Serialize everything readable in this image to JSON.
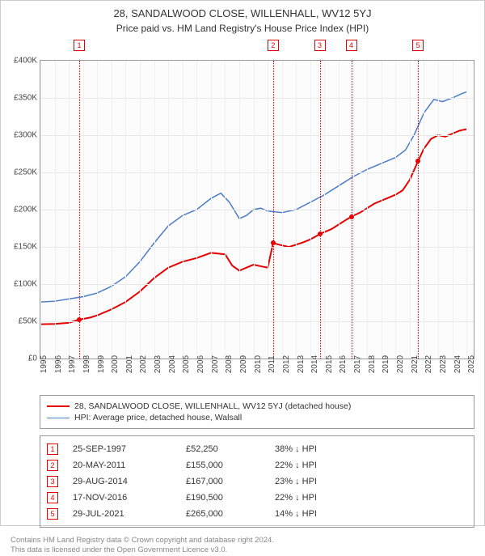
{
  "title_main": "28, SANDALWOOD CLOSE, WILLENHALL, WV12 5YJ",
  "title_sub": "Price paid vs. HM Land Registry's House Price Index (HPI)",
  "chart": {
    "type": "line",
    "x_min": 1995,
    "x_max": 2025.5,
    "y_min": 0,
    "y_max": 400000,
    "y_ticks": [
      0,
      50000,
      100000,
      150000,
      200000,
      250000,
      300000,
      350000,
      400000
    ],
    "y_tick_labels": [
      "£0",
      "£50K",
      "£100K",
      "£150K",
      "£200K",
      "£250K",
      "£300K",
      "£350K",
      "£400K"
    ],
    "x_ticks": [
      1995,
      1996,
      1997,
      1998,
      1999,
      2000,
      2001,
      2002,
      2003,
      2004,
      2005,
      2006,
      2007,
      2008,
      2009,
      2010,
      2011,
      2012,
      2013,
      2014,
      2015,
      2016,
      2017,
      2018,
      2019,
      2020,
      2021,
      2022,
      2023,
      2024,
      2025
    ],
    "background_color": "#fcfcfc",
    "grid_color": "#e8e8e8",
    "axis_color": "#999999",
    "series": [
      {
        "name": "property",
        "label": "28, SANDALWOOD CLOSE, WILLENHALL, WV12 5YJ (detached house)",
        "color": "#e60000",
        "line_width": 2,
        "points": [
          [
            1995.0,
            46000
          ],
          [
            1996.0,
            46500
          ],
          [
            1997.0,
            48000
          ],
          [
            1997.73,
            52250
          ],
          [
            1998.5,
            55000
          ],
          [
            1999.0,
            58000
          ],
          [
            2000.0,
            66000
          ],
          [
            2001.0,
            76000
          ],
          [
            2002.0,
            90000
          ],
          [
            2003.0,
            108000
          ],
          [
            2004.0,
            122000
          ],
          [
            2005.0,
            130000
          ],
          [
            2006.0,
            135000
          ],
          [
            2007.0,
            142000
          ],
          [
            2008.0,
            140000
          ],
          [
            2008.5,
            125000
          ],
          [
            2009.0,
            118000
          ],
          [
            2009.5,
            122000
          ],
          [
            2010.0,
            126000
          ],
          [
            2010.5,
            124000
          ],
          [
            2011.0,
            122000
          ],
          [
            2011.38,
            155000
          ],
          [
            2012.0,
            152000
          ],
          [
            2012.5,
            150000
          ],
          [
            2013.0,
            153000
          ],
          [
            2013.5,
            156000
          ],
          [
            2014.0,
            160000
          ],
          [
            2014.66,
            167000
          ],
          [
            2015.0,
            170000
          ],
          [
            2015.5,
            174000
          ],
          [
            2016.0,
            180000
          ],
          [
            2016.5,
            186000
          ],
          [
            2016.88,
            190500
          ],
          [
            2017.5,
            196000
          ],
          [
            2018.0,
            202000
          ],
          [
            2018.5,
            208000
          ],
          [
            2019.0,
            212000
          ],
          [
            2019.5,
            216000
          ],
          [
            2020.0,
            220000
          ],
          [
            2020.5,
            226000
          ],
          [
            2021.0,
            240000
          ],
          [
            2021.58,
            265000
          ],
          [
            2022.0,
            282000
          ],
          [
            2022.5,
            295000
          ],
          [
            2023.0,
            300000
          ],
          [
            2023.5,
            298000
          ],
          [
            2024.0,
            302000
          ],
          [
            2024.5,
            306000
          ],
          [
            2025.0,
            308000
          ]
        ]
      },
      {
        "name": "hpi",
        "label": "HPI: Average price, detached house, Walsall",
        "color": "#4a7bc8",
        "line_width": 1.5,
        "points": [
          [
            1995.0,
            76000
          ],
          [
            1996.0,
            77000
          ],
          [
            1997.0,
            80000
          ],
          [
            1998.0,
            83000
          ],
          [
            1999.0,
            88000
          ],
          [
            2000.0,
            97000
          ],
          [
            2001.0,
            110000
          ],
          [
            2002.0,
            130000
          ],
          [
            2003.0,
            155000
          ],
          [
            2004.0,
            178000
          ],
          [
            2005.0,
            192000
          ],
          [
            2006.0,
            200000
          ],
          [
            2007.0,
            215000
          ],
          [
            2007.7,
            222000
          ],
          [
            2008.3,
            210000
          ],
          [
            2009.0,
            188000
          ],
          [
            2009.5,
            192000
          ],
          [
            2010.0,
            200000
          ],
          [
            2010.5,
            202000
          ],
          [
            2011.0,
            198000
          ],
          [
            2012.0,
            196000
          ],
          [
            2013.0,
            200000
          ],
          [
            2014.0,
            210000
          ],
          [
            2015.0,
            220000
          ],
          [
            2016.0,
            232000
          ],
          [
            2017.0,
            244000
          ],
          [
            2018.0,
            254000
          ],
          [
            2019.0,
            262000
          ],
          [
            2020.0,
            270000
          ],
          [
            2020.7,
            280000
          ],
          [
            2021.3,
            300000
          ],
          [
            2022.0,
            330000
          ],
          [
            2022.7,
            348000
          ],
          [
            2023.3,
            345000
          ],
          [
            2024.0,
            350000
          ],
          [
            2024.7,
            356000
          ],
          [
            2025.0,
            358000
          ]
        ]
      }
    ],
    "markers": [
      {
        "n": "1",
        "x": 1997.73,
        "y": 52250,
        "color": "#e60000"
      },
      {
        "n": "2",
        "x": 2011.38,
        "y": 155000,
        "color": "#e60000"
      },
      {
        "n": "3",
        "x": 2014.66,
        "y": 167000,
        "color": "#e60000"
      },
      {
        "n": "4",
        "x": 2016.88,
        "y": 190500,
        "color": "#e60000"
      },
      {
        "n": "5",
        "x": 2021.58,
        "y": 265000,
        "color": "#e60000"
      }
    ]
  },
  "legend": [
    {
      "label": "28, SANDALWOOD CLOSE, WILLENHALL, WV12 5YJ (detached house)",
      "color": "#e60000",
      "width": 2
    },
    {
      "label": "HPI: Average price, detached house, Walsall",
      "color": "#4a7bc8",
      "width": 1.5
    }
  ],
  "transactions": [
    {
      "n": "1",
      "date": "25-SEP-1997",
      "price": "£52,250",
      "diff": "38% ↓ HPI",
      "color": "#e60000"
    },
    {
      "n": "2",
      "date": "20-MAY-2011",
      "price": "£155,000",
      "diff": "22% ↓ HPI",
      "color": "#e60000"
    },
    {
      "n": "3",
      "date": "29-AUG-2014",
      "price": "£167,000",
      "diff": "23% ↓ HPI",
      "color": "#e60000"
    },
    {
      "n": "4",
      "date": "17-NOV-2016",
      "price": "£190,500",
      "diff": "22% ↓ HPI",
      "color": "#e60000"
    },
    {
      "n": "5",
      "date": "29-JUL-2021",
      "price": "£265,000",
      "diff": "14% ↓ HPI",
      "color": "#e60000"
    }
  ],
  "footer_line1": "Contains HM Land Registry data © Crown copyright and database right 2024.",
  "footer_line2": "This data is licensed under the Open Government Licence v3.0."
}
